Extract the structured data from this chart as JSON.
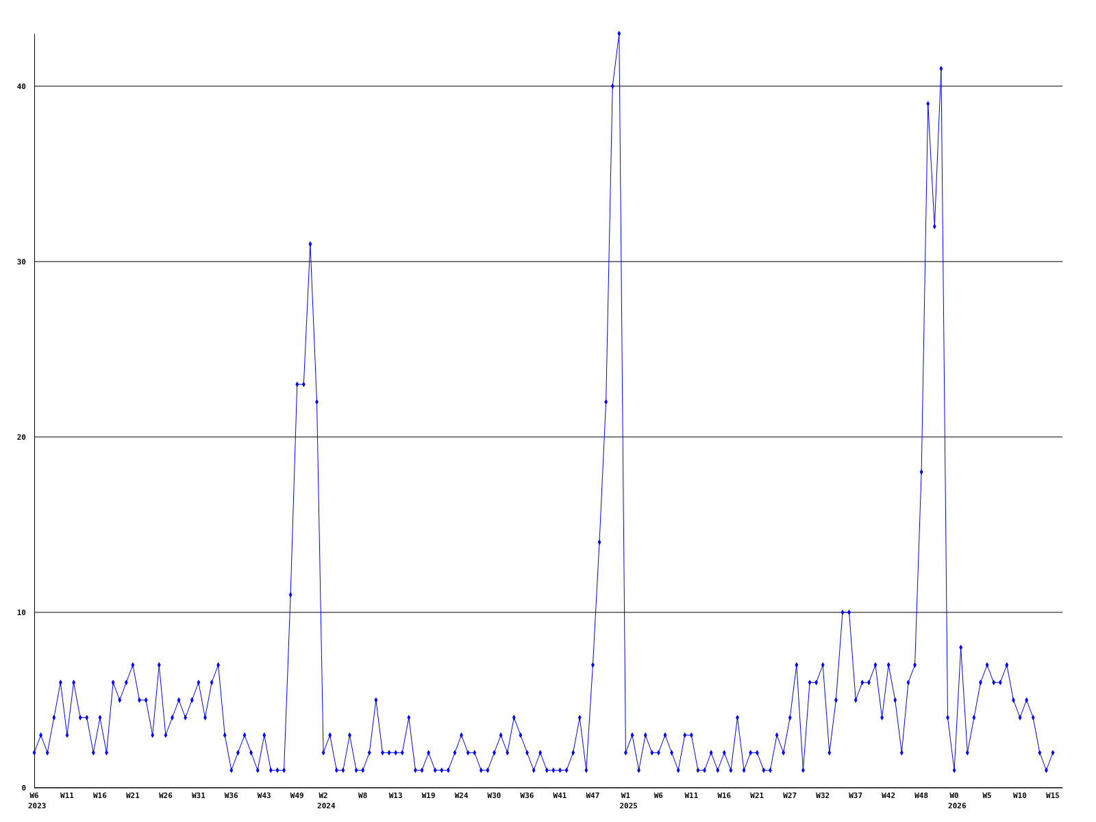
{
  "chart_data": {
    "type": "line",
    "categories": [
      "W6\n2023",
      null,
      null,
      null,
      null,
      "W11",
      null,
      null,
      null,
      null,
      "W16",
      null,
      null,
      null,
      null,
      "W21",
      null,
      null,
      null,
      null,
      "W26",
      null,
      null,
      null,
      null,
      "W31",
      null,
      null,
      null,
      null,
      "W36",
      null,
      null,
      null,
      null,
      "W43",
      null,
      null,
      null,
      null,
      "W49",
      null,
      null,
      null,
      "W2\n2024",
      null,
      null,
      null,
      null,
      null,
      "W8",
      null,
      null,
      null,
      null,
      "W13",
      null,
      null,
      null,
      null,
      "W19",
      null,
      null,
      null,
      null,
      "W24",
      null,
      null,
      null,
      null,
      "W30",
      null,
      null,
      null,
      null,
      "W36",
      null,
      null,
      null,
      null,
      "W41",
      null,
      null,
      null,
      null,
      "W47",
      null,
      null,
      null,
      null,
      "W1\n2025",
      null,
      null,
      null,
      null,
      "W6",
      null,
      null,
      null,
      null,
      "W11",
      null,
      null,
      null,
      null,
      "W16",
      null,
      null,
      null,
      null,
      "W21",
      null,
      null,
      null,
      null,
      "W27",
      null,
      null,
      null,
      null,
      "W32",
      null,
      null,
      null,
      null,
      "W37",
      null,
      null,
      null,
      null,
      "W42",
      null,
      null,
      null,
      null,
      "W48",
      null,
      null,
      null,
      null,
      "W0\n2026",
      null,
      null,
      null,
      null,
      "W5",
      null,
      null,
      null,
      null,
      "W10",
      null,
      null,
      null,
      null,
      "W15"
    ],
    "series": [
      {
        "color": "#0000ff",
        "values": [
          2,
          3,
          2,
          4,
          6,
          3,
          6,
          4,
          4,
          2,
          4,
          2,
          6,
          5,
          6,
          7,
          5,
          5,
          3,
          7,
          3,
          4,
          5,
          4,
          5,
          6,
          4,
          6,
          7,
          3,
          1,
          2,
          3,
          2,
          1,
          3,
          1,
          1,
          1,
          11,
          23,
          23,
          31,
          22,
          2,
          3,
          1,
          1,
          3,
          1,
          1,
          2,
          5,
          2,
          2,
          2,
          2,
          4,
          1,
          1,
          2,
          1,
          1,
          1,
          2,
          3,
          2,
          2,
          1,
          1,
          2,
          3,
          2,
          4,
          3,
          2,
          1,
          2,
          1,
          1,
          1,
          1,
          2,
          4,
          1,
          7,
          14,
          22,
          40,
          43,
          2,
          3,
          1,
          3,
          2,
          2,
          3,
          2,
          1,
          3,
          3,
          1,
          1,
          2,
          1,
          2,
          1,
          4,
          1,
          2,
          2,
          1,
          1,
          3,
          2,
          4,
          7,
          1,
          6,
          6,
          7,
          2,
          5,
          10,
          10,
          5,
          6,
          6,
          7,
          4,
          7,
          5,
          2,
          6,
          7,
          18,
          39,
          32,
          41,
          4,
          1,
          8,
          2,
          4,
          6,
          7,
          6,
          6,
          7,
          5,
          4,
          5,
          4,
          2,
          1,
          2
        ]
      }
    ],
    "ylim": [
      0,
      43
    ],
    "yticks": [
      0,
      10,
      20,
      30,
      40
    ],
    "grid": "y",
    "marker": "diamond",
    "line_style": "solid"
  }
}
